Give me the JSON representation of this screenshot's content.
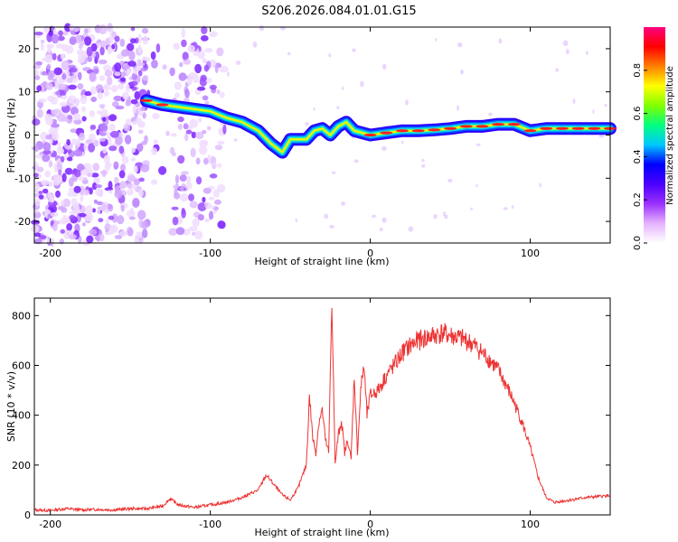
{
  "figure_title": "S206.2026.084.01.01.G15",
  "chart_data": [
    {
      "type": "heatmap",
      "title": "",
      "xlabel": "Height of straight line (km)",
      "ylabel": "Frequency (Hz)",
      "xlim": [
        -210,
        150
      ],
      "ylim": [
        -25,
        25
      ],
      "xticks": [
        -200,
        -100,
        0,
        100
      ],
      "xtick_labels": [
        "-200",
        "-100",
        "0",
        "100"
      ],
      "yticks": [
        -20,
        -10,
        0,
        10,
        20
      ],
      "ytick_labels": [
        "-20",
        "-10",
        "0",
        "10",
        "20"
      ],
      "ridge": [
        [
          -140,
          8
        ],
        [
          -130,
          7
        ],
        [
          -120,
          6.5
        ],
        [
          -110,
          6
        ],
        [
          -100,
          5.5
        ],
        [
          -90,
          4
        ],
        [
          -80,
          3
        ],
        [
          -70,
          1
        ],
        [
          -62,
          -2
        ],
        [
          -55,
          -4
        ],
        [
          -50,
          -1
        ],
        [
          -40,
          -1
        ],
        [
          -35,
          1
        ],
        [
          -30,
          1.5
        ],
        [
          -25,
          0
        ],
        [
          -20,
          2
        ],
        [
          -15,
          3
        ],
        [
          -10,
          1
        ],
        [
          -5,
          0.5
        ],
        [
          0,
          0
        ],
        [
          10,
          0.5
        ],
        [
          20,
          1
        ],
        [
          30,
          1
        ],
        [
          40,
          1.2
        ],
        [
          50,
          1.5
        ],
        [
          60,
          2
        ],
        [
          70,
          2
        ],
        [
          80,
          2.5
        ],
        [
          90,
          2.5
        ],
        [
          100,
          1
        ],
        [
          110,
          1.5
        ],
        [
          120,
          1.5
        ],
        [
          130,
          1.5
        ],
        [
          140,
          1.5
        ],
        [
          150,
          1.5
        ]
      ],
      "noise_region": [
        -210,
        -90
      ],
      "colorbar": {
        "label": "Normalized spectral amplitude",
        "ticks": [
          0,
          0.2,
          0.4,
          0.6,
          0.8
        ],
        "tick_labels": [
          "0.0",
          "0.2",
          "0.4",
          "0.6",
          "0.8"
        ],
        "range": [
          0,
          1
        ],
        "colors": [
          "#ffffff",
          "#e6b3ff",
          "#9b30ff",
          "#4b00ff",
          "#0000ff",
          "#00c8ff",
          "#00ff80",
          "#80ff00",
          "#ffff00",
          "#ff8000",
          "#ff0000",
          "#ff0080"
        ]
      }
    },
    {
      "type": "line",
      "title": "",
      "xlabel": "Height of straight line (km)",
      "ylabel": "SNR (10 * v/v)",
      "xlim": [
        -210,
        150
      ],
      "ylim": [
        0,
        870
      ],
      "xticks": [
        -200,
        -100,
        0,
        100
      ],
      "xtick_labels": [
        "-200",
        "-100",
        "0",
        "100"
      ],
      "yticks": [
        0,
        200,
        400,
        600,
        800
      ],
      "ytick_labels": [
        "0",
        "200",
        "400",
        "600",
        "800"
      ],
      "series": [
        {
          "name": "SNR",
          "color": "#ee3333",
          "x": [
            -210,
            -200,
            -190,
            -180,
            -170,
            -160,
            -150,
            -140,
            -130,
            -125,
            -120,
            -110,
            -100,
            -90,
            -80,
            -70,
            -65,
            -60,
            -55,
            -50,
            -45,
            -40,
            -38,
            -36,
            -34,
            -32,
            -30,
            -28,
            -26,
            -24,
            -22,
            -20,
            -18,
            -16,
            -14,
            -12,
            -10,
            -8,
            -6,
            -4,
            -2,
            0,
            5,
            10,
            15,
            20,
            25,
            30,
            35,
            40,
            45,
            50,
            55,
            60,
            65,
            70,
            75,
            80,
            85,
            90,
            95,
            100,
            105,
            110,
            115,
            120,
            125,
            130,
            135,
            140,
            145,
            150
          ],
          "y": [
            20,
            18,
            25,
            20,
            22,
            20,
            25,
            25,
            35,
            65,
            40,
            30,
            40,
            50,
            70,
            100,
            160,
            120,
            80,
            60,
            110,
            200,
            480,
            310,
            250,
            380,
            420,
            300,
            250,
            870,
            200,
            320,
            380,
            250,
            300,
            220,
            560,
            250,
            500,
            600,
            400,
            480,
            500,
            560,
            600,
            650,
            680,
            700,
            710,
            720,
            730,
            720,
            710,
            700,
            680,
            650,
            620,
            580,
            520,
            450,
            370,
            270,
            150,
            70,
            50,
            55,
            60,
            65,
            70,
            72,
            75,
            78
          ]
        }
      ]
    }
  ]
}
